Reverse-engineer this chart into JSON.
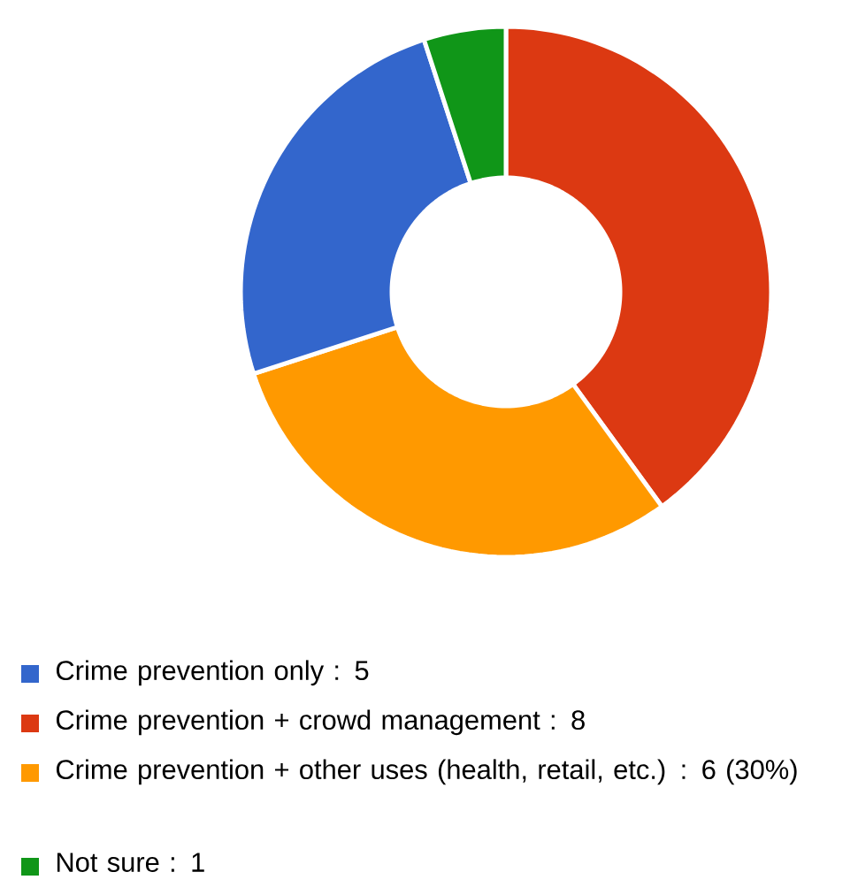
{
  "chart_data": {
    "type": "donut",
    "categories": [
      "Crime prevention only : 5",
      "Crime prevention + crowd management : 8",
      "Crime prevention + other uses (health, retail, etc.) : 6 (30%)",
      "Not sure : 1"
    ],
    "values": [
      5,
      8,
      6,
      1
    ],
    "colors": [
      "#3366cc",
      "#dc3912",
      "#ff9900",
      "#109618"
    ],
    "legend": "bottom"
  }
}
